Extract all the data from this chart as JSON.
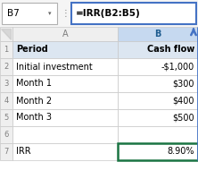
{
  "formula_bar_cell": "B7",
  "formula_bar_formula": "=IRR(B2:B5)",
  "rows": [
    [
      "Period",
      "Cash flow"
    ],
    [
      "Initial investment",
      "-$1,000"
    ],
    [
      "Month 1",
      "$300"
    ],
    [
      "Month 2",
      "$400"
    ],
    [
      "Month 3",
      "$500"
    ],
    [
      "",
      ""
    ],
    [
      "IRR",
      "8.90%"
    ]
  ],
  "header_row_bg": "#dce6f1",
  "header_col_bg": "#efefef",
  "selected_col_header_bg": "#c6d9f0",
  "selected_cell_border": "#1a7443",
  "formula_bar_border": "#4472c4",
  "arrow_color": "#4472c4",
  "grid_color": "#c8c8c8",
  "text_color_header": "#7f7f7f",
  "bg_color": "#ffffff",
  "namebox_border": "#b0b0b0",
  "col_b_header_text": "#1e5c8f"
}
